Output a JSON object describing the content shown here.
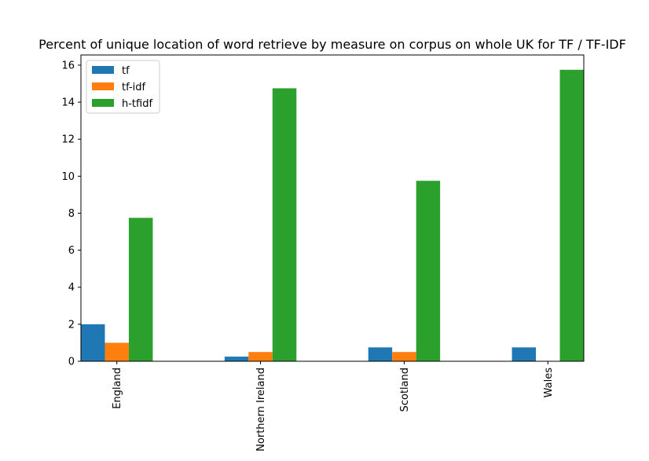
{
  "chart_data": {
    "type": "bar",
    "title": "Percent of unique location of word retrieve by measure on corpus on whole UK for TF / TF-IDF",
    "xlabel": "",
    "ylabel": "",
    "categories": [
      "England",
      "Northern Ireland",
      "Scotland",
      "Wales"
    ],
    "series": [
      {
        "name": "tf",
        "color": "#1f77b4",
        "values": [
          2.0,
          0.25,
          0.75,
          0.75
        ]
      },
      {
        "name": "tf-idf",
        "color": "#ff7f0e",
        "values": [
          1.0,
          0.5,
          0.5,
          0.0
        ]
      },
      {
        "name": "h-tfidf",
        "color": "#2ca02c",
        "values": [
          7.75,
          14.75,
          9.75,
          15.75
        ]
      }
    ],
    "ylim": [
      0,
      16.55
    ],
    "yticks": [
      0,
      2,
      4,
      6,
      8,
      10,
      12,
      14,
      16
    ],
    "ytick_labels": [
      "0",
      "2",
      "4",
      "6",
      "8",
      "10",
      "12",
      "14",
      "16"
    ],
    "grid": false,
    "legend_position": "top-left",
    "xtick_rotation": "vertical"
  }
}
